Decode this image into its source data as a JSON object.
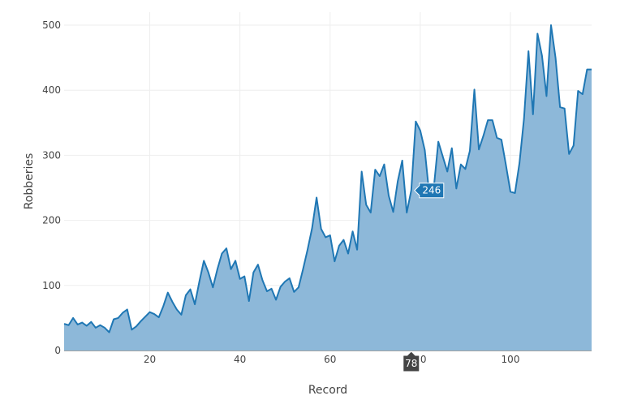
{
  "chart_data": {
    "type": "area",
    "xlabel": "Record",
    "ylabel": "Robberies",
    "xlim": [
      1,
      118
    ],
    "ylim": [
      0,
      520
    ],
    "x_ticks": [
      20,
      40,
      60,
      80,
      100
    ],
    "y_ticks": [
      0,
      100,
      200,
      300,
      400,
      500
    ],
    "grid": true,
    "colors": {
      "line": "#1f77b4",
      "fill": "#8db8d9",
      "hover_y": "#1f77b4",
      "hover_x": "#444444"
    },
    "series": [
      {
        "x": [
          1,
          2,
          3,
          4,
          5,
          6,
          7,
          8,
          9,
          10,
          11,
          12,
          13,
          14,
          15,
          16,
          17,
          18,
          19,
          20,
          21,
          22,
          23,
          24,
          25,
          26,
          27,
          28,
          29,
          30,
          31,
          32,
          33,
          34,
          35,
          36,
          37,
          38,
          39,
          40,
          41,
          42,
          43,
          44,
          45,
          46,
          47,
          48,
          49,
          50,
          51,
          52,
          53,
          54,
          55,
          56,
          57,
          58,
          59,
          60,
          61,
          62,
          63,
          64,
          65,
          66,
          67,
          68,
          69,
          70,
          71,
          72,
          73,
          74,
          75,
          76,
          77,
          78,
          79,
          80,
          81,
          82,
          83,
          84,
          85,
          86,
          87,
          88,
          89,
          90,
          91,
          92,
          93,
          94,
          95,
          96,
          97,
          98,
          99,
          100,
          101,
          102,
          103,
          104,
          105,
          106,
          107,
          108,
          109,
          110,
          111,
          112,
          113,
          114,
          115,
          116,
          117,
          118
        ],
        "y": [
          41,
          39,
          50,
          40,
          43,
          38,
          44,
          35,
          39,
          35,
          28,
          48,
          50,
          58,
          63,
          32,
          37,
          45,
          52,
          59,
          56,
          51,
          68,
          89,
          75,
          63,
          55,
          85,
          94,
          71,
          106,
          138,
          120,
          97,
          125,
          149,
          157,
          125,
          138,
          110,
          114,
          76,
          120,
          132,
          108,
          91,
          95,
          78,
          98,
          106,
          111,
          90,
          97,
          125,
          155,
          188,
          235,
          187,
          174,
          177,
          137,
          161,
          170,
          149,
          183,
          155,
          275,
          224,
          212,
          278,
          268,
          286,
          238,
          213,
          260,
          292,
          212,
          246,
          352,
          338,
          308,
          240,
          250,
          321,
          298,
          275,
          311,
          249,
          286,
          279,
          307,
          401,
          309,
          330,
          354,
          354,
          327,
          324,
          285,
          244,
          242,
          288,
          356,
          460,
          363,
          487,
          453,
          391,
          500,
          450,
          374,
          372,
          302,
          315,
          399,
          394,
          432,
          432
        ]
      }
    ],
    "hover": {
      "x_label": "78",
      "y_label": "246",
      "point_x": 78,
      "point_y": 246
    }
  }
}
